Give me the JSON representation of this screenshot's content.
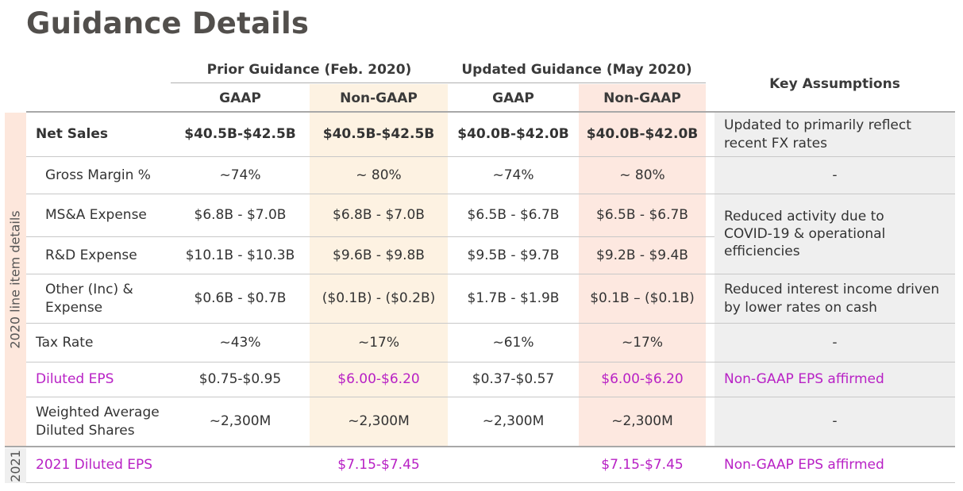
{
  "title": "Guidance Details",
  "header": {
    "prior": "Prior Guidance (Feb. 2020)",
    "updated": "Updated Guidance (May 2020)",
    "key_assumptions": "Key Assumptions",
    "gaap": "GAAP",
    "non_gaap": "Non-GAAP"
  },
  "side_labels": {
    "y2020": "2020 line item details",
    "y2021": "2021"
  },
  "rows": [
    {
      "label": "Net Sales",
      "prior_gaap": "$40.5B-$42.5B",
      "prior_nongaap": "$40.5B-$42.5B",
      "updated_gaap": "$40.0B-$42.0B",
      "updated_nongaap": "$40.0B-$42.0B",
      "assumption": "Updated to primarily reflect recent FX rates"
    },
    {
      "label": "Gross Margin %",
      "prior_gaap": "~74%",
      "prior_nongaap": "~ 80%",
      "updated_gaap": "~74%",
      "updated_nongaap": "~ 80%",
      "assumption": "-"
    },
    {
      "label": "MS&A Expense",
      "prior_gaap": "$6.8B - $7.0B",
      "prior_nongaap": "$6.8B - $7.0B",
      "updated_gaap": "$6.5B - $6.7B",
      "updated_nongaap": "$6.5B - $6.7B",
      "assumption": "Reduced activity due to COVID-19 & operational efficiencies"
    },
    {
      "label": "R&D Expense",
      "prior_gaap": "$10.1B - $10.3B",
      "prior_nongaap": "$9.6B - $9.8B",
      "updated_gaap": "$9.5B - $9.7B",
      "updated_nongaap": "$9.2B - $9.4B"
    },
    {
      "label": "Other (Inc) & Expense",
      "prior_gaap": "$0.6B - $0.7B",
      "prior_nongaap": "($0.1B) - ($0.2B)",
      "updated_gaap": "$1.7B - $1.9B",
      "updated_nongaap": "$0.1B – ($0.1B)",
      "assumption": "Reduced interest income driven by lower rates on cash"
    },
    {
      "label": "Tax Rate",
      "prior_gaap": "~43%",
      "prior_nongaap": "~17%",
      "updated_gaap": "~61%",
      "updated_nongaap": "~17%",
      "assumption": "-"
    },
    {
      "label": "Diluted EPS",
      "prior_gaap": "$0.75-$0.95",
      "prior_nongaap": "$6.00-$6.20",
      "updated_gaap": "$0.37-$0.57",
      "updated_nongaap": "$6.00-$6.20",
      "assumption": "Non-GAAP EPS affirmed"
    },
    {
      "label": "Weighted Average Diluted Shares",
      "prior_gaap": "~2,300M",
      "prior_nongaap": "~2,300M",
      "updated_gaap": "~2,300M",
      "updated_nongaap": "~2,300M",
      "assumption": "-"
    },
    {
      "label": "2021 Diluted EPS",
      "prior_gaap": "",
      "prior_nongaap": "$7.15-$7.45",
      "updated_gaap": "",
      "updated_nongaap": "$7.15-$7.45",
      "assumption": "Non-GAAP EPS affirmed"
    }
  ],
  "colors": {
    "prior_nongaap_band": "#fdf2e2",
    "updated_nongaap_band": "#fde8e0",
    "assumption_band": "#efefef",
    "side_band": "#fde7dc",
    "highlight_text": "#b821c5"
  }
}
